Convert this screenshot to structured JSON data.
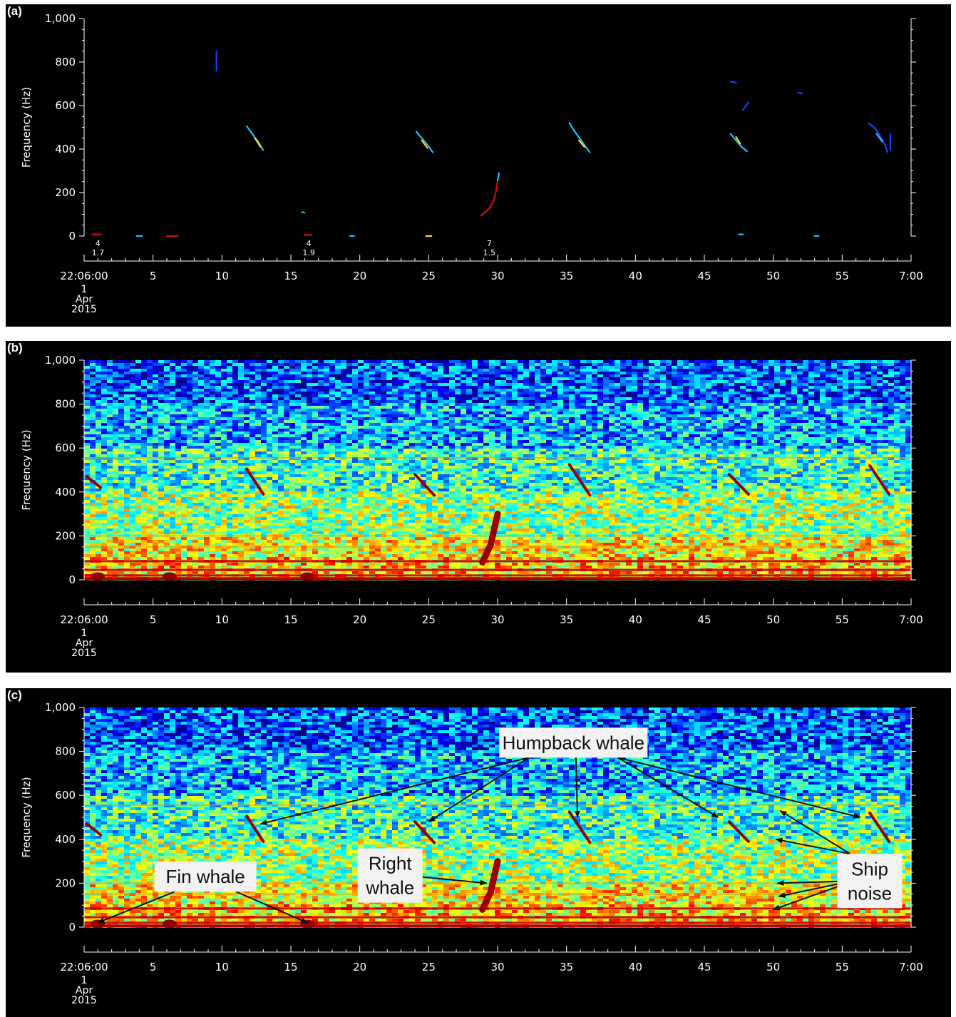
{
  "chart_data": [
    {
      "id": "a",
      "panel_label": "(a)",
      "type": "scatter",
      "subtype": "detection-pitch-tracks",
      "ylabel": "Frequency (Hz)",
      "xlabel": "",
      "ylim": [
        0,
        1000
      ],
      "xlim": [
        0,
        60
      ],
      "y_ticks": [
        "0",
        "200",
        "400",
        "600",
        "800",
        "1,000"
      ],
      "x_ticks": [
        "22:06:00",
        "5",
        "10",
        "15",
        "20",
        "25",
        "30",
        "35",
        "40",
        "45",
        "50",
        "55",
        "7:00"
      ],
      "x_date_lines": [
        "1",
        "Apr",
        "2015"
      ],
      "grid": false,
      "detection_labels": [
        {
          "x": 1.0,
          "top": "4",
          "bottom": "1.7"
        },
        {
          "x": 16.3,
          "top": "4",
          "bottom": "1.9"
        },
        {
          "x": 29.4,
          "top": "7",
          "bottom": "1.5"
        }
      ],
      "series": [
        {
          "color": "#1a3fff",
          "points": [
            [
              9.6,
              850
            ],
            [
              9.6,
              760
            ]
          ]
        },
        {
          "color": "#20c0ff",
          "points": [
            [
              11.8,
              505
            ],
            [
              12.2,
              470
            ],
            [
              12.6,
              435
            ],
            [
              13.0,
              395
            ]
          ]
        },
        {
          "color": "#ffe020",
          "points": [
            [
              12.4,
              450
            ],
            [
              12.8,
              410
            ]
          ]
        },
        {
          "color": "#20c0ff",
          "points": [
            [
              24.1,
              480
            ],
            [
              24.5,
              450
            ],
            [
              24.9,
              420
            ],
            [
              25.3,
              385
            ]
          ]
        },
        {
          "color": "#ffd020",
          "points": [
            [
              24.5,
              440
            ],
            [
              24.9,
              405
            ]
          ]
        },
        {
          "color": "#d01010",
          "points": [
            [
              28.8,
              95
            ],
            [
              29.3,
              120
            ],
            [
              29.7,
              160
            ],
            [
              29.9,
              210
            ],
            [
              30.0,
              250
            ]
          ]
        },
        {
          "color": "#20c0ff",
          "points": [
            [
              30.0,
              255
            ],
            [
              30.1,
              290
            ]
          ]
        },
        {
          "color": "#20c0ff",
          "points": [
            [
              35.2,
              520
            ],
            [
              35.6,
              480
            ],
            [
              36.0,
              445
            ],
            [
              36.4,
              410
            ],
            [
              36.7,
              385
            ]
          ]
        },
        {
          "color": "#ffe020",
          "points": [
            [
              35.9,
              440
            ],
            [
              36.3,
              410
            ]
          ]
        },
        {
          "color": "#1a3fff",
          "points": [
            [
              46.9,
              710
            ],
            [
              47.3,
              705
            ]
          ]
        },
        {
          "color": "#1a3fff",
          "points": [
            [
              47.8,
              580
            ],
            [
              48.2,
              615
            ]
          ]
        },
        {
          "color": "#20c0ff",
          "points": [
            [
              46.9,
              470
            ],
            [
              47.3,
              440
            ],
            [
              47.7,
              410
            ],
            [
              48.1,
              390
            ]
          ]
        },
        {
          "color": "#ffe020",
          "points": [
            [
              47.3,
              455
            ],
            [
              47.6,
              425
            ]
          ]
        },
        {
          "color": "#1a3fff",
          "points": [
            [
              51.8,
              660
            ],
            [
              52.1,
              655
            ]
          ]
        },
        {
          "color": "#1a3fff",
          "points": [
            [
              56.9,
              520
            ],
            [
              57.4,
              495
            ],
            [
              57.8,
              455
            ],
            [
              58.1,
              420
            ],
            [
              58.3,
              385
            ]
          ]
        },
        {
          "color": "#20c0ff",
          "points": [
            [
              57.5,
              470
            ],
            [
              57.9,
              435
            ]
          ]
        },
        {
          "color": "#1a3fff",
          "points": [
            [
              58.5,
              395
            ],
            [
              58.5,
              470
            ]
          ]
        },
        {
          "color": "#d01010",
          "points": [
            [
              0.6,
              8
            ],
            [
              1.2,
              8
            ]
          ]
        },
        {
          "color": "#20c0ff",
          "points": [
            [
              3.8,
              0
            ],
            [
              4.2,
              0
            ]
          ]
        },
        {
          "color": "#d01010",
          "points": [
            [
              6.0,
              0
            ],
            [
              6.8,
              0
            ]
          ]
        },
        {
          "color": "#20c0ff",
          "points": [
            [
              15.8,
              110
            ],
            [
              16.0,
              108
            ]
          ]
        },
        {
          "color": "#d01010",
          "points": [
            [
              16.0,
              5
            ],
            [
              16.5,
              5
            ]
          ]
        },
        {
          "color": "#20c0ff",
          "points": [
            [
              19.3,
              0
            ],
            [
              19.6,
              0
            ]
          ]
        },
        {
          "color": "#ffd020",
          "points": [
            [
              24.8,
              0
            ],
            [
              25.2,
              0
            ]
          ]
        },
        {
          "color": "#20c0ff",
          "points": [
            [
              47.5,
              8
            ],
            [
              47.8,
              8
            ]
          ]
        },
        {
          "color": "#20c0ff",
          "points": [
            [
              53.0,
              0
            ],
            [
              53.3,
              0
            ]
          ]
        }
      ]
    },
    {
      "id": "b",
      "panel_label": "(b)",
      "type": "heatmap",
      "subtype": "spectrogram",
      "ylabel": "Frequency (Hz)",
      "xlabel": "",
      "ylim": [
        0,
        1000
      ],
      "xlim": [
        0,
        60
      ],
      "y_ticks": [
        "0",
        "200",
        "400",
        "600",
        "800",
        "1,000"
      ],
      "x_ticks": [
        "22:06:00",
        "5",
        "10",
        "15",
        "20",
        "25",
        "30",
        "35",
        "40",
        "45",
        "50",
        "55",
        "7:00"
      ],
      "x_date_lines": [
        "1",
        "Apr",
        "2015"
      ],
      "colormap": "jet",
      "grid": false,
      "bands": [
        {
          "f_lo": 0,
          "f_hi": 200,
          "level": 0.62
        },
        {
          "f_lo": 200,
          "f_hi": 400,
          "level": 0.52
        },
        {
          "f_lo": 400,
          "f_hi": 600,
          "level": 0.42
        },
        {
          "f_lo": 600,
          "f_hi": 800,
          "level": 0.3
        },
        {
          "f_lo": 800,
          "f_hi": 1000,
          "level": 0.2
        }
      ],
      "tonal_lines_hz": [
        20,
        45,
        85,
        150,
        200,
        555
      ],
      "calls": [
        {
          "type": "humpback",
          "points": [
            [
              0.2,
              470
            ],
            [
              1.2,
              420
            ]
          ]
        },
        {
          "type": "humpback",
          "points": [
            [
              11.8,
              505
            ],
            [
              13.0,
              390
            ]
          ]
        },
        {
          "type": "humpback",
          "points": [
            [
              24.0,
              480
            ],
            [
              25.4,
              385
            ]
          ]
        },
        {
          "type": "humpback",
          "points": [
            [
              35.2,
              525
            ],
            [
              36.7,
              385
            ]
          ]
        },
        {
          "type": "humpback",
          "points": [
            [
              46.8,
              480
            ],
            [
              48.2,
              390
            ]
          ]
        },
        {
          "type": "humpback",
          "points": [
            [
              57.0,
              520
            ],
            [
              58.4,
              390
            ]
          ]
        },
        {
          "type": "right",
          "points": [
            [
              28.9,
              80
            ],
            [
              29.5,
              160
            ],
            [
              30.0,
              300
            ]
          ]
        },
        {
          "type": "fin",
          "points": [
            [
              1.0,
              5
            ]
          ]
        },
        {
          "type": "fin",
          "points": [
            [
              6.2,
              5
            ]
          ]
        },
        {
          "type": "fin",
          "points": [
            [
              16.2,
              5
            ]
          ]
        }
      ]
    },
    {
      "id": "c",
      "panel_label": "(c)",
      "type": "heatmap",
      "subtype": "spectrogram",
      "ylabel": "Frequency (Hz)",
      "xlabel": "",
      "ylim": [
        0,
        1000
      ],
      "xlim": [
        0,
        60
      ],
      "y_ticks": [
        "0",
        "200",
        "400",
        "600",
        "800",
        "1,000"
      ],
      "x_ticks": [
        "22:06:00",
        "5",
        "10",
        "15",
        "20",
        "25",
        "30",
        "35",
        "40",
        "45",
        "50",
        "55",
        "7:00"
      ],
      "x_date_lines": [
        "1",
        "Apr",
        "2015"
      ],
      "colormap": "jet",
      "grid": false,
      "bands": [
        {
          "f_lo": 0,
          "f_hi": 200,
          "level": 0.62
        },
        {
          "f_lo": 200,
          "f_hi": 400,
          "level": 0.52
        },
        {
          "f_lo": 400,
          "f_hi": 600,
          "level": 0.42
        },
        {
          "f_lo": 600,
          "f_hi": 800,
          "level": 0.3
        },
        {
          "f_lo": 800,
          "f_hi": 1000,
          "level": 0.2
        }
      ],
      "tonal_lines_hz": [
        20,
        45,
        85,
        150,
        200,
        555
      ],
      "calls": [
        {
          "type": "humpback",
          "points": [
            [
              0.2,
              470
            ],
            [
              1.2,
              420
            ]
          ]
        },
        {
          "type": "humpback",
          "points": [
            [
              11.8,
              505
            ],
            [
              13.0,
              390
            ]
          ]
        },
        {
          "type": "humpback",
          "points": [
            [
              24.0,
              480
            ],
            [
              25.4,
              385
            ]
          ]
        },
        {
          "type": "humpback",
          "points": [
            [
              35.2,
              525
            ],
            [
              36.7,
              385
            ]
          ]
        },
        {
          "type": "humpback",
          "points": [
            [
              46.8,
              480
            ],
            [
              48.2,
              390
            ]
          ]
        },
        {
          "type": "humpback",
          "points": [
            [
              57.0,
              520
            ],
            [
              58.4,
              390
            ]
          ]
        },
        {
          "type": "right",
          "points": [
            [
              28.9,
              80
            ],
            [
              29.5,
              160
            ],
            [
              30.0,
              300
            ]
          ]
        },
        {
          "type": "fin",
          "points": [
            [
              1.0,
              5
            ]
          ]
        },
        {
          "type": "fin",
          "points": [
            [
              6.2,
              5
            ]
          ]
        },
        {
          "type": "fin",
          "points": [
            [
              16.2,
              5
            ]
          ]
        }
      ],
      "annotations": [
        {
          "text": [
            "Humpback whale"
          ],
          "box_center": [
            35.5,
            840
          ],
          "arrow_targets": [
            [
              12.8,
              470
            ],
            [
              25.0,
              480
            ],
            [
              35.8,
              500
            ],
            [
              46.0,
              500
            ],
            [
              56.3,
              500
            ]
          ]
        },
        {
          "text": [
            "Fin whale"
          ],
          "box_center": [
            8.8,
            230
          ],
          "arrow_targets": [
            [
              1.0,
              20
            ],
            [
              16.2,
              20
            ]
          ]
        },
        {
          "text": [
            "Right",
            "whale"
          ],
          "box_center": [
            22.2,
            235
          ],
          "arrow_targets": [
            [
              29.2,
              200
            ]
          ]
        },
        {
          "text": [
            "Ship",
            "noise"
          ],
          "box_center": [
            57.0,
            210
          ],
          "arrow_targets": [
            [
              50.5,
              530
            ],
            [
              50.2,
              400
            ],
            [
              50.3,
              200
            ],
            [
              50.4,
              140
            ],
            [
              50.0,
              80
            ]
          ]
        }
      ]
    }
  ]
}
